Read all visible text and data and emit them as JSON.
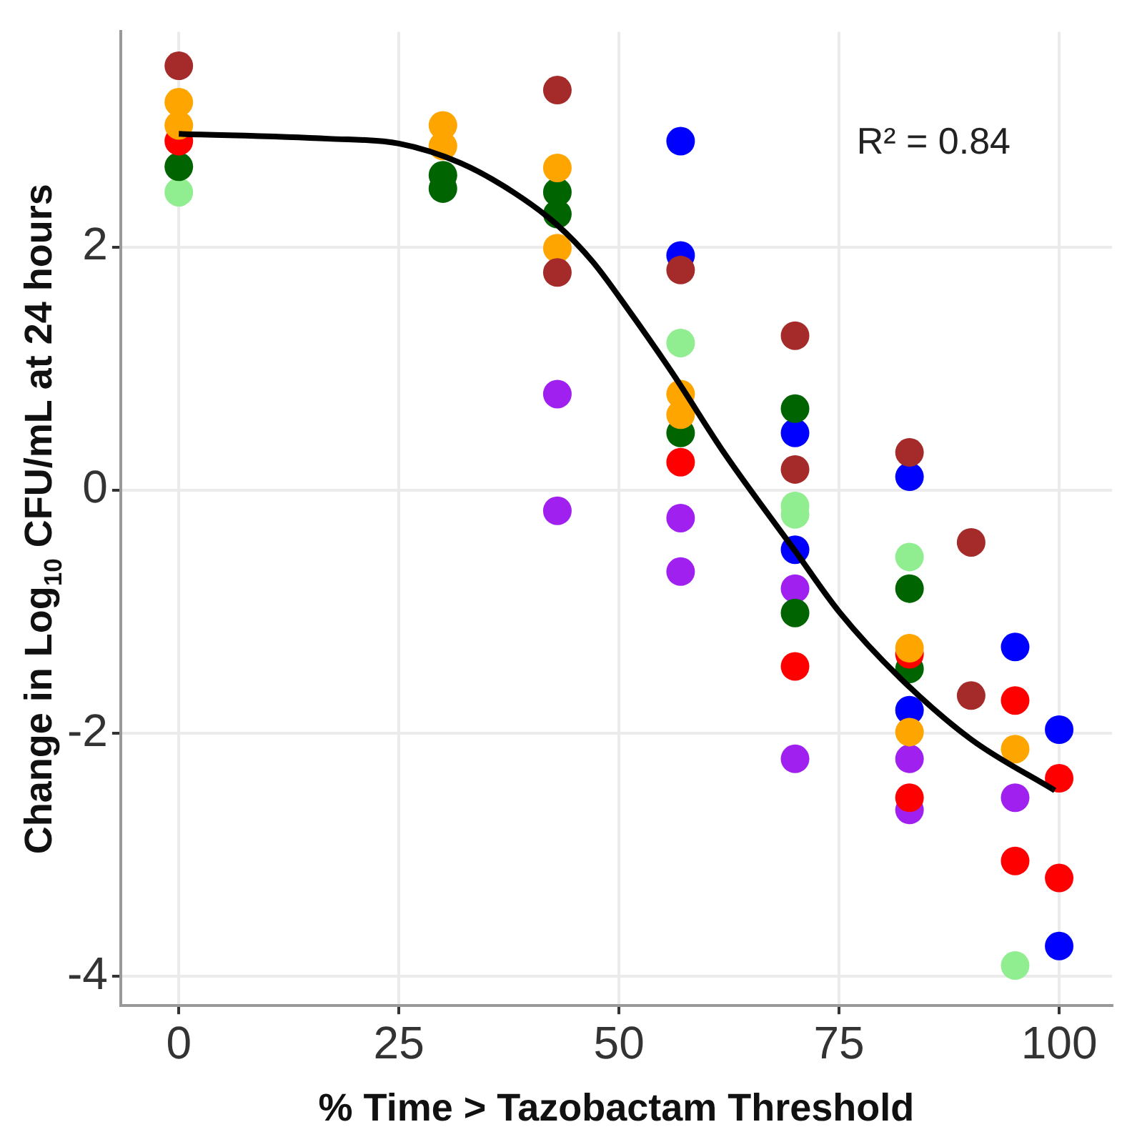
{
  "chart_data": {
    "type": "scatter",
    "xlabel": "% Time > Tazobactam Threshold",
    "ylabel": "Change in Log$_{10}$ CFU/mL at 24 hours",
    "annotations": [
      "R² = 0.84"
    ],
    "xlim": [
      -6.6,
      106
    ],
    "xticks": [
      0,
      25,
      50,
      75,
      100
    ],
    "ylim": [
      -4.24,
      3.77
    ],
    "yticks": [
      -4,
      -2,
      0,
      2
    ],
    "grid": true,
    "legend": false,
    "marker": "circle",
    "series": [
      {
        "color": "#a52a2a",
        "x": [
          0,
          43,
          43,
          57,
          70,
          70,
          83,
          90,
          90
        ],
        "values": [
          3.49,
          3.29,
          1.79,
          1.81,
          1.27,
          0.17,
          0.31,
          -0.43,
          -1.69
        ]
      },
      {
        "color": "#ffa500",
        "x": [
          0,
          0,
          30,
          30,
          43,
          43,
          57,
          57,
          83,
          83,
          95
        ],
        "values": [
          3.19,
          3.0,
          3.0,
          2.83,
          2.65,
          1.99,
          0.79,
          0.62,
          -1.3,
          -1.99,
          -2.13
        ]
      },
      {
        "color": "#ff0000",
        "x": [
          0,
          57,
          70,
          83,
          83,
          95,
          95,
          100,
          100
        ],
        "values": [
          2.87,
          0.23,
          -1.45,
          -1.35,
          -2.53,
          -1.73,
          -3.05,
          -2.37,
          -3.19
        ]
      },
      {
        "color": "#006400",
        "x": [
          0,
          30,
          30,
          43,
          43,
          57,
          70,
          70,
          83,
          83
        ],
        "values": [
          2.66,
          2.59,
          2.48,
          2.45,
          2.27,
          0.47,
          0.67,
          -1.01,
          -0.81,
          -1.47
        ]
      },
      {
        "color": "#90ee90",
        "x": [
          0,
          57,
          70,
          70,
          83,
          95
        ],
        "values": [
          2.45,
          1.21,
          -0.13,
          -0.2,
          -0.55,
          -3.91
        ]
      },
      {
        "color": "#0000ff",
        "x": [
          57,
          57,
          70,
          70,
          83,
          83,
          95,
          100,
          100
        ],
        "values": [
          2.87,
          1.93,
          0.47,
          -0.49,
          0.11,
          -1.81,
          -1.29,
          -1.97,
          -3.75
        ]
      },
      {
        "color": "#a020f0",
        "x": [
          43,
          43,
          57,
          57,
          70,
          70,
          83,
          83,
          95
        ],
        "values": [
          0.79,
          -0.17,
          -0.23,
          -0.67,
          -0.81,
          -2.21,
          -2.21,
          -2.63,
          -2.53
        ]
      },
      {
        "type": "line",
        "marker": "none",
        "color": "#000000",
        "x": [
          0,
          17,
          25,
          32,
          38,
          43,
          47,
          51,
          56,
          62,
          70,
          75,
          82,
          90,
          99.5
        ],
        "values": [
          2.93,
          2.89,
          2.85,
          2.69,
          2.45,
          2.18,
          1.88,
          1.49,
          0.97,
          0.3,
          -0.5,
          -1.0,
          -1.55,
          -2.05,
          -2.47
        ]
      }
    ]
  }
}
